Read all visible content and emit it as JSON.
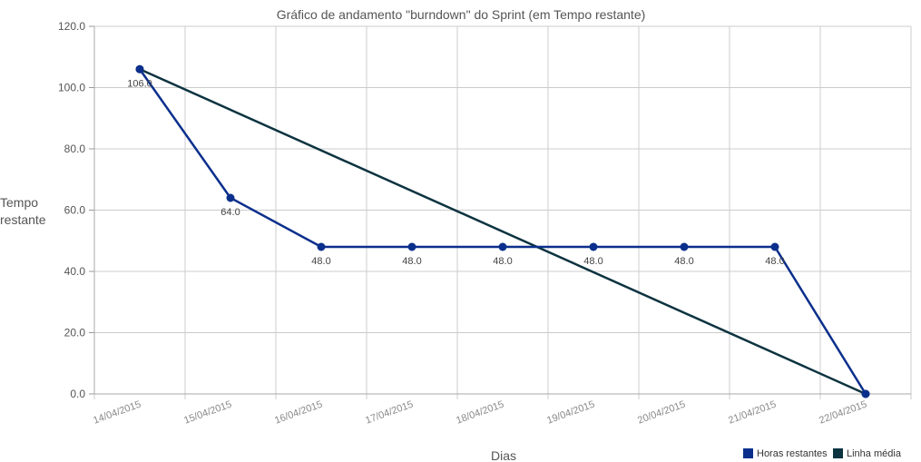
{
  "chart_data": {
    "type": "line",
    "title": "Gráfico de andamento \"burndown\" do Sprint (em Tempo restante)",
    "xlabel": "Dias",
    "ylabel": [
      "Tempo",
      "restante"
    ],
    "categories": [
      "14/04/2015",
      "15/04/2015",
      "16/04/2015",
      "17/04/2015",
      "18/04/2015",
      "19/04/2015",
      "20/04/2015",
      "21/04/2015",
      "22/04/2015"
    ],
    "ylim": [
      0,
      120
    ],
    "yticks": [
      "0.0",
      "20.0",
      "40.0",
      "60.0",
      "80.0",
      "100.0",
      "120.0"
    ],
    "grid": true,
    "legend": "bottom-right",
    "series": [
      {
        "name": "Horas restantes",
        "color": "#0b2f8c",
        "values": [
          106.0,
          64.0,
          48.0,
          48.0,
          48.0,
          48.0,
          48.0,
          48.0,
          0.0
        ],
        "labels": [
          "106.0",
          "64.0",
          "48.0",
          "48.0",
          "48.0",
          "48.0",
          "48.0",
          "48.0",
          ""
        ]
      },
      {
        "name": "Linha média",
        "color": "#0c3340",
        "points": [
          [
            0,
            106.0
          ],
          [
            8,
            0.0
          ]
        ]
      }
    ]
  }
}
